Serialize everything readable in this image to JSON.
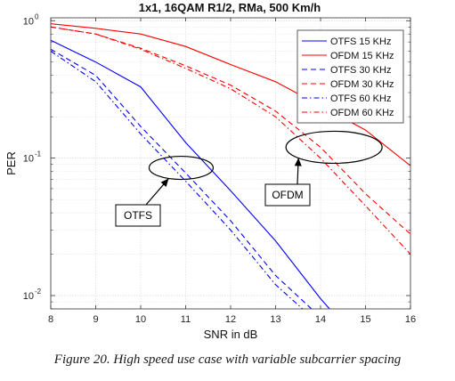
{
  "chart_data": {
    "type": "line",
    "title": "1x1, 16QAM R1/2, RMa, 500 Km/h",
    "xlabel": "SNR in dB",
    "ylabel": "PER",
    "xlim": [
      8,
      16
    ],
    "ylim": [
      0.008,
      1.05
    ],
    "yscale": "log",
    "grid": true,
    "legend_position": "top-right",
    "x_ticks": [
      "8",
      "9",
      "10",
      "11",
      "12",
      "13",
      "14",
      "15",
      "16"
    ],
    "y_ticks": [
      {
        "value": 1,
        "mantissa": "10",
        "exp": "0"
      },
      {
        "value": 0.1,
        "mantissa": "10",
        "exp": "-1"
      },
      {
        "value": 0.01,
        "mantissa": "10",
        "exp": "-2"
      }
    ],
    "series": [
      {
        "name": "OTFS 15 KHz",
        "color": "#0000ff",
        "style": "solid",
        "x": [
          8,
          9,
          10,
          11,
          12,
          13,
          14,
          14.2
        ],
        "y": [
          0.72,
          0.5,
          0.33,
          0.13,
          0.058,
          0.025,
          0.0095,
          0.008
        ]
      },
      {
        "name": "OFDM 15 KHz",
        "color": "#ff0000",
        "style": "solid",
        "x": [
          8,
          9,
          10,
          11,
          12,
          13,
          14,
          15,
          16
        ],
        "y": [
          0.95,
          0.88,
          0.8,
          0.65,
          0.48,
          0.36,
          0.24,
          0.16,
          0.088
        ]
      },
      {
        "name": "OTFS 30 KHz",
        "color": "#0000ff",
        "style": "dash",
        "x": [
          8,
          9,
          10,
          11,
          12,
          13,
          13.8
        ],
        "y": [
          0.62,
          0.4,
          0.17,
          0.078,
          0.035,
          0.014,
          0.008
        ]
      },
      {
        "name": "OFDM 30 KHz",
        "color": "#ff0000",
        "style": "dash",
        "x": [
          8,
          9,
          10,
          11,
          12,
          13,
          14,
          15,
          16
        ],
        "y": [
          0.9,
          0.8,
          0.63,
          0.47,
          0.34,
          0.22,
          0.12,
          0.055,
          0.028
        ]
      },
      {
        "name": "OTFS 60 KHz",
        "color": "#0000ff",
        "style": "dashdot",
        "x": [
          8,
          9,
          10,
          11,
          12,
          13,
          13.6
        ],
        "y": [
          0.6,
          0.36,
          0.15,
          0.068,
          0.03,
          0.012,
          0.008
        ]
      },
      {
        "name": "OFDM 60 KHz",
        "color": "#ff0000",
        "style": "dashdot",
        "x": [
          8,
          9,
          10,
          11,
          12,
          13,
          14,
          15,
          16
        ],
        "y": [
          0.9,
          0.8,
          0.62,
          0.45,
          0.32,
          0.2,
          0.1,
          0.045,
          0.02
        ]
      }
    ],
    "annotations": [
      {
        "text": "OTFS",
        "target_x": 10.9,
        "target_y": 0.085
      },
      {
        "text": "OFDM",
        "target_x": 14.3,
        "target_y": 0.12
      }
    ]
  },
  "caption": "Figure 20. High speed use case with variable subcarrier spacing"
}
